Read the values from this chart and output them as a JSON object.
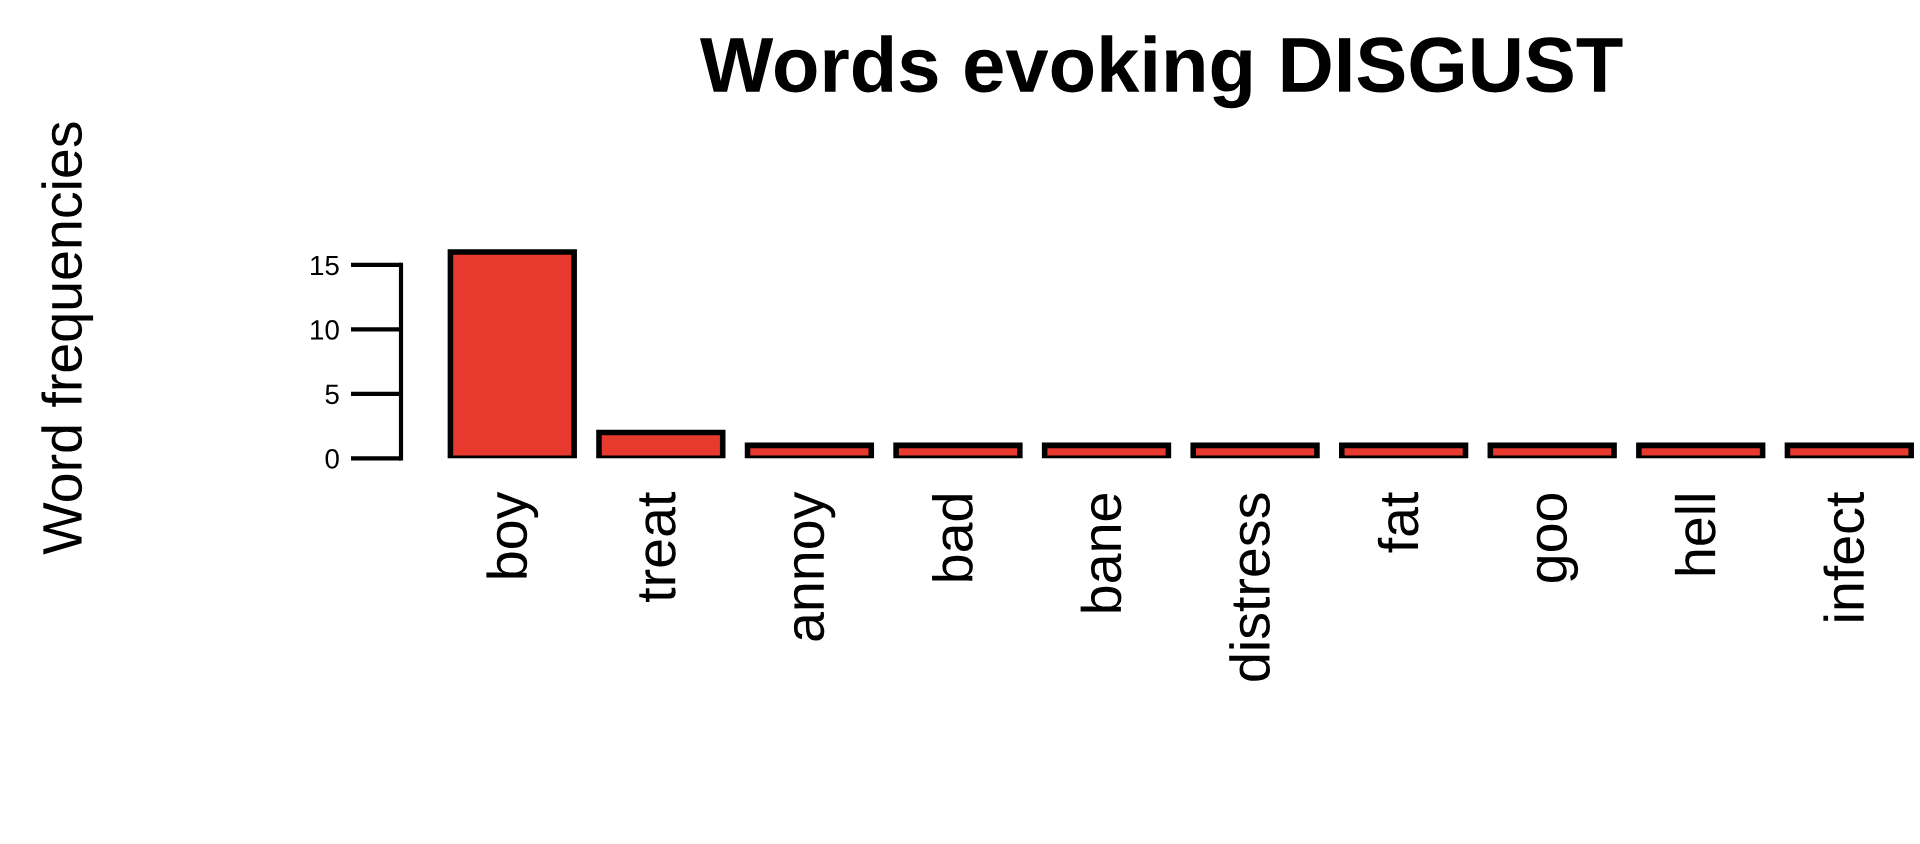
{
  "chart_data": {
    "type": "bar",
    "title": "Words evoking DISGUST",
    "ylabel": "Word frequencies",
    "categories": [
      "boy",
      "treat",
      "annoy",
      "bad",
      "bane",
      "distress",
      "fat",
      "goo",
      "hell",
      "infect"
    ],
    "values": [
      16,
      2,
      1,
      1,
      1,
      1,
      1,
      1,
      1,
      1
    ],
    "color": "#e8392f",
    "ylim": [
      0,
      16.5
    ],
    "yticks": [
      0,
      5,
      10,
      15
    ],
    "grid": false
  }
}
